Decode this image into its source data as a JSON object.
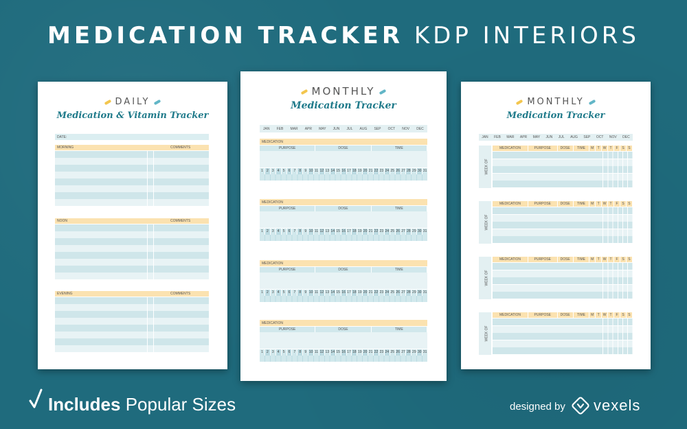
{
  "header": {
    "title_bold": "MEDICATION TRACKER",
    "title_rest": "KDP INTERIORS"
  },
  "daily": {
    "title": "DAILY",
    "subtitle": "Medication & Vitamin Tracker",
    "date_label": "DATE:",
    "sections": [
      {
        "label": "MORNING",
        "comments": "COMMENTS"
      },
      {
        "label": "NOON",
        "comments": "COMMENTS"
      },
      {
        "label": "EVENING",
        "comments": "COMMENTS"
      }
    ]
  },
  "monthly1": {
    "title": "MONTHLY",
    "subtitle": "Medication Tracker",
    "months": [
      "JAN",
      "FEB",
      "MAR",
      "APR",
      "MAY",
      "JUN",
      "JUL",
      "AUG",
      "SEP",
      "OCT",
      "NOV",
      "DEC"
    ],
    "block_label": "MEDICATION",
    "cols": [
      "PURPOSE",
      "DOSE",
      "TIME"
    ],
    "days": [
      "1",
      "2",
      "3",
      "4",
      "5",
      "6",
      "7",
      "8",
      "9",
      "10",
      "11",
      "12",
      "13",
      "14",
      "15",
      "16",
      "17",
      "18",
      "19",
      "20",
      "21",
      "22",
      "23",
      "24",
      "25",
      "26",
      "27",
      "28",
      "29",
      "30",
      "31"
    ]
  },
  "monthly2": {
    "title": "MONTHLY",
    "subtitle": "Medication Tracker",
    "months": [
      "JAN",
      "FEB",
      "MAR",
      "APR",
      "MAY",
      "JUN",
      "JUL",
      "AUG",
      "SEP",
      "OCT",
      "NOV",
      "DEC"
    ],
    "cols": [
      "MEDICATION",
      "PURPOSE",
      "DOSE",
      "TIME",
      "M",
      "T",
      "W",
      "T",
      "F",
      "S",
      "S"
    ],
    "week_label": "WEEK OF"
  },
  "footer": {
    "includes_bold": "Includes",
    "includes_rest": "Popular Sizes",
    "designed_by": "designed by",
    "brand": "vexels"
  },
  "colors": {
    "background": "#1f6b7d",
    "yellow": "#fbe2b0",
    "teal": "#d1e8ec",
    "title_teal": "#1f7a8a"
  }
}
